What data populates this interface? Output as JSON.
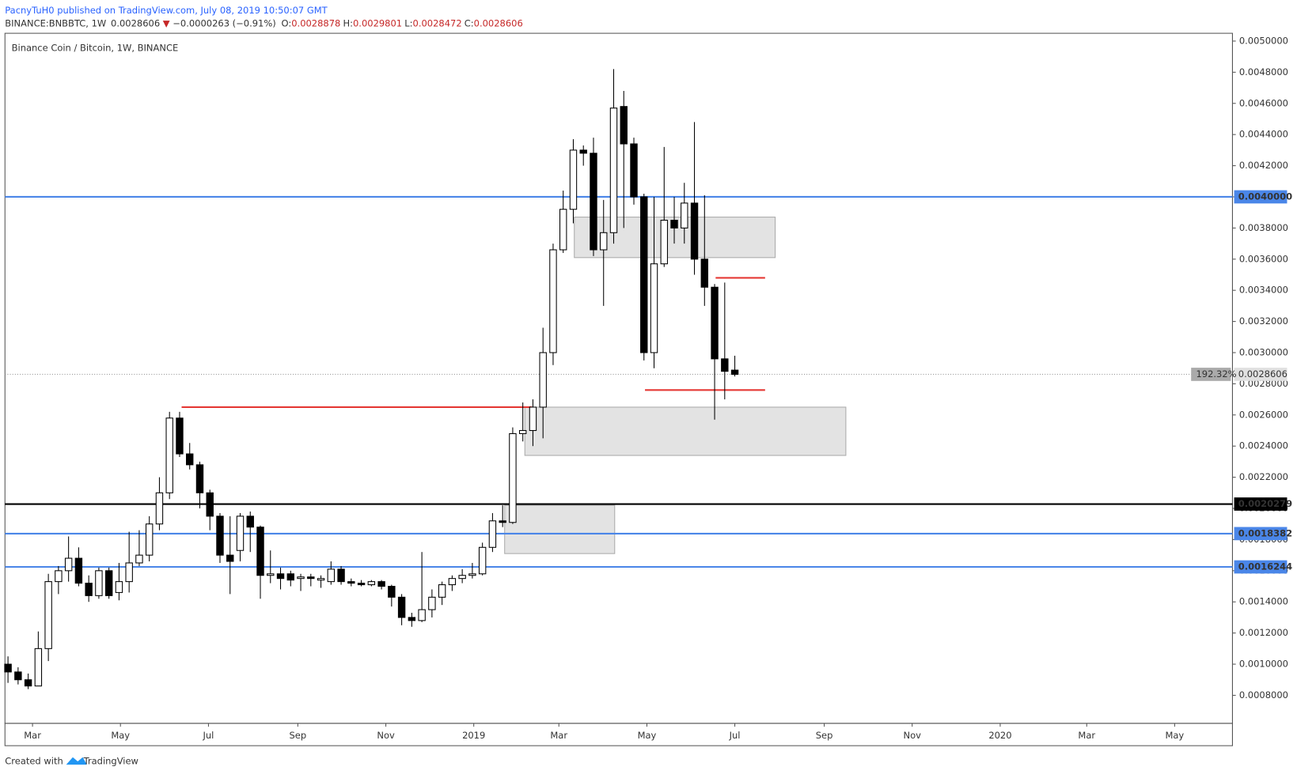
{
  "header": {
    "byline": "PacnyTuH0 published on TradingView.com, July 08, 2019 10:50:07 GMT",
    "symbol": "BINANCE:BNBBTC, 1W",
    "value": "0.0028606",
    "arrow": "▼",
    "change": "−0.0000263 (−0.91%)",
    "ohlc": [
      {
        "label": "O:",
        "value": "0.0028878"
      },
      {
        "label": "H:",
        "value": "0.0029801"
      },
      {
        "label": "L:",
        "value": "0.0028472"
      },
      {
        "label": "C:",
        "value": "0.0028606"
      }
    ]
  },
  "footer": {
    "created": "Created with",
    "brand": "TradingView"
  },
  "chart_data": {
    "type": "candlestick",
    "title": "Binance Coin / Bitcoin, 1W, BINANCE",
    "up_color": "#ffffff",
    "down_color": "#000000",
    "wick_color": "#000000",
    "x": [
      6,
      7,
      8,
      9,
      10,
      11,
      12,
      13,
      14,
      15,
      16,
      17,
      18,
      19,
      20,
      21,
      22,
      23,
      24,
      25,
      26,
      27,
      28,
      29,
      30,
      31,
      32,
      33,
      34,
      35,
      36,
      37,
      38,
      39,
      40,
      41,
      42,
      43,
      44,
      45,
      46,
      47,
      48,
      49,
      50,
      51,
      52,
      53,
      54,
      55,
      56,
      57,
      58,
      59,
      60,
      61,
      62,
      63,
      64,
      65,
      66,
      67,
      68,
      69,
      70,
      71,
      72,
      73,
      74,
      75,
      76,
      77,
      78
    ],
    "open": [
      0.001,
      0.00095,
      0.0009,
      0.00086,
      0.0011,
      0.00153,
      0.0016,
      0.00168,
      0.00152,
      0.00144,
      0.0016,
      0.00146,
      0.00153,
      0.00165,
      0.0017,
      0.0019,
      0.0021,
      0.00258,
      0.00235,
      0.00228,
      0.0021,
      0.00195,
      0.0017,
      0.00173,
      0.00195,
      0.00188,
      0.00157,
      0.00158,
      0.00158,
      0.00155,
      0.00156,
      0.00154,
      0.00153,
      0.00161,
      0.00153,
      0.00152,
      0.00151,
      0.00153,
      0.0015,
      0.00143,
      0.0013,
      0.00128,
      0.00135,
      0.00143,
      0.00151,
      0.00155,
      0.00157,
      0.00158,
      0.00175,
      0.00192,
      0.00191,
      0.00248,
      0.0025,
      0.00265,
      0.003,
      0.00366,
      0.00392,
      0.0043,
      0.00428,
      0.00366,
      0.00377,
      0.00458,
      0.00434,
      0.004,
      0.003,
      0.00357,
      0.00385,
      0.0038,
      0.00396,
      0.0036,
      0.00342,
      0.00296,
      0.0028878
    ],
    "high": [
      0.00105,
      0.00098,
      0.00094,
      0.00121,
      0.00158,
      0.00163,
      0.00182,
      0.00175,
      0.00157,
      0.00162,
      0.00162,
      0.00165,
      0.00185,
      0.00186,
      0.00195,
      0.0022,
      0.00262,
      0.00262,
      0.00242,
      0.0023,
      0.00212,
      0.00197,
      0.00195,
      0.00197,
      0.00198,
      0.00189,
      0.00173,
      0.00162,
      0.0016,
      0.00158,
      0.00158,
      0.00157,
      0.00166,
      0.00163,
      0.00155,
      0.00154,
      0.00154,
      0.00154,
      0.00151,
      0.00145,
      0.00133,
      0.00172,
      0.00148,
      0.00153,
      0.00157,
      0.00161,
      0.00165,
      0.00178,
      0.00197,
      0.00202,
      0.00252,
      0.00268,
      0.0027,
      0.00316,
      0.0037,
      0.00404,
      0.00437,
      0.00433,
      0.00438,
      0.00398,
      0.00482,
      0.00468,
      0.00438,
      0.00402,
      0.004,
      0.00432,
      0.004,
      0.00409,
      0.00448,
      0.00401,
      0.00344,
      0.00345,
      0.0029801
    ],
    "low": [
      0.00088,
      0.00087,
      0.00084,
      0.00086,
      0.00102,
      0.00145,
      0.00153,
      0.0015,
      0.0014,
      0.00142,
      0.00142,
      0.00141,
      0.00146,
      0.00163,
      0.00166,
      0.00186,
      0.00206,
      0.00233,
      0.00225,
      0.002,
      0.00186,
      0.00165,
      0.00145,
      0.00166,
      0.00172,
      0.00142,
      0.00152,
      0.00148,
      0.0015,
      0.00147,
      0.0015,
      0.00149,
      0.00151,
      0.00151,
      0.0015,
      0.0015,
      0.0015,
      0.00148,
      0.00137,
      0.00125,
      0.00124,
      0.00127,
      0.0013,
      0.00138,
      0.00147,
      0.00152,
      0.00155,
      0.00157,
      0.00172,
      0.00188,
      0.0019,
      0.00243,
      0.0024,
      0.00245,
      0.00292,
      0.00364,
      0.00383,
      0.0042,
      0.00362,
      0.0033,
      0.0037,
      0.0038,
      0.00395,
      0.00295,
      0.0029,
      0.00355,
      0.0037,
      0.0037,
      0.0035,
      0.0033,
      0.00257,
      0.0027,
      0.0028472
    ],
    "close": [
      0.00095,
      0.0009,
      0.00086,
      0.0011,
      0.00153,
      0.0016,
      0.00168,
      0.00152,
      0.00144,
      0.0016,
      0.00144,
      0.00153,
      0.00165,
      0.0017,
      0.0019,
      0.0021,
      0.00258,
      0.00235,
      0.00228,
      0.0021,
      0.00195,
      0.0017,
      0.00166,
      0.00195,
      0.00188,
      0.00157,
      0.00158,
      0.00155,
      0.00154,
      0.00156,
      0.00155,
      0.00155,
      0.00161,
      0.00153,
      0.00152,
      0.00151,
      0.00153,
      0.0015,
      0.00143,
      0.0013,
      0.00128,
      0.00135,
      0.00143,
      0.00151,
      0.00155,
      0.00157,
      0.00158,
      0.00175,
      0.00192,
      0.00191,
      0.00248,
      0.0025,
      0.00265,
      0.003,
      0.00366,
      0.00392,
      0.0043,
      0.00428,
      0.00366,
      0.00377,
      0.00457,
      0.00434,
      0.004,
      0.003,
      0.00357,
      0.00385,
      0.0038,
      0.00396,
      0.0036,
      0.00342,
      0.00296,
      0.00288,
      0.0028606
    ],
    "xlim": [
      5.7,
      127.3
    ],
    "xticks": [
      {
        "value": 8.43,
        "label": "Mar"
      },
      {
        "value": 17.14,
        "label": "May"
      },
      {
        "value": 25.86,
        "label": "Jul"
      },
      {
        "value": 34.71,
        "label": "Sep"
      },
      {
        "value": 43.43,
        "label": "Nov"
      },
      {
        "value": 52.14,
        "label": "2019"
      },
      {
        "value": 60.57,
        "label": "Mar"
      },
      {
        "value": 69.29,
        "label": "May"
      },
      {
        "value": 78,
        "label": "Jul"
      },
      {
        "value": 86.86,
        "label": "Sep"
      },
      {
        "value": 95.57,
        "label": "Nov"
      },
      {
        "value": 104.29,
        "label": "2020"
      },
      {
        "value": 112.86,
        "label": "Mar"
      },
      {
        "value": 121.57,
        "label": "May"
      }
    ],
    "ylim": [
      0.00062,
      0.00505
    ],
    "yticks": [
      {
        "value": 0.0008,
        "label": "0.0008000"
      },
      {
        "value": 0.001,
        "label": "0.0010000"
      },
      {
        "value": 0.0012,
        "label": "0.0012000"
      },
      {
        "value": 0.0014,
        "label": "0.0014000"
      },
      {
        "value": 0.0016,
        "label": "0.0016000"
      },
      {
        "value": 0.0018,
        "label": "0.0018000"
      },
      {
        "value": 0.002,
        "label": "0.0020000"
      },
      {
        "value": 0.0022,
        "label": "0.0022000"
      },
      {
        "value": 0.0024,
        "label": "0.0024000"
      },
      {
        "value": 0.0026,
        "label": "0.0026000"
      },
      {
        "value": 0.0028,
        "label": "0.0028000"
      },
      {
        "value": 0.003,
        "label": "0.0030000"
      },
      {
        "value": 0.0032,
        "label": "0.0032000"
      },
      {
        "value": 0.0034,
        "label": "0.0034000"
      },
      {
        "value": 0.0036,
        "label": "0.0036000"
      },
      {
        "value": 0.0038,
        "label": "0.0038000"
      },
      {
        "value": 0.004,
        "label": "0.0040000"
      },
      {
        "value": 0.0042,
        "label": "0.0042000"
      },
      {
        "value": 0.0044,
        "label": "0.0044000"
      },
      {
        "value": 0.0046,
        "label": "0.0046000"
      },
      {
        "value": 0.0048,
        "label": "0.0048000"
      },
      {
        "value": 0.005,
        "label": "0.0050000"
      }
    ],
    "levels": [
      {
        "value": 0.004,
        "label": "0.0040000",
        "color": "#4a86e8"
      },
      {
        "value": 0.0020279,
        "label": "0.0020279",
        "color": "#000000"
      },
      {
        "value": 0.0018382,
        "label": "0.0018382",
        "color": "#4a86e8"
      },
      {
        "value": 0.0016244,
        "label": "0.0016244",
        "color": "#4a86e8"
      }
    ],
    "last_price": {
      "value": 0.0028606,
      "label": "0.0028606",
      "change_label": "192.32%"
    },
    "zones": [
      {
        "from": 62.1,
        "to": 82.0,
        "top": 0.00387,
        "bottom": 0.00361
      },
      {
        "from": 57.2,
        "to": 89.0,
        "top": 0.00265,
        "bottom": 0.00234
      },
      {
        "from": 55.2,
        "to": 66.1,
        "top": 0.00202,
        "bottom": 0.00171
      }
    ],
    "segments": [
      {
        "from": 23.2,
        "to": 57.9,
        "value": 0.00265,
        "color": "#e53935"
      },
      {
        "from": 69.1,
        "to": 81.0,
        "value": 0.00276,
        "color": "#e53935"
      },
      {
        "from": 76.1,
        "to": 81.0,
        "value": 0.00348,
        "color": "#e53935"
      }
    ]
  }
}
